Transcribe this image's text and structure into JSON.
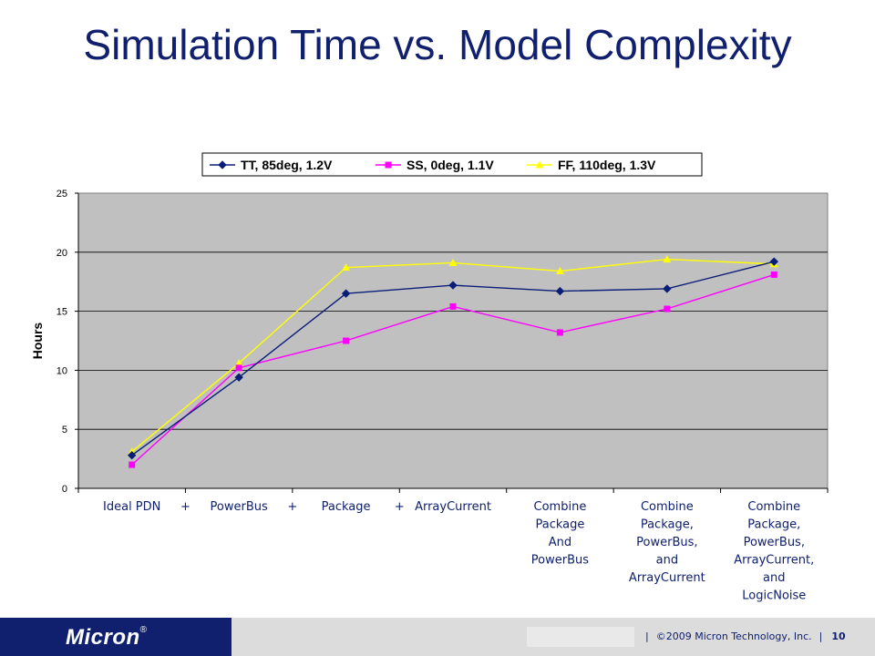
{
  "title": "Simulation Time vs. Model Complexity",
  "footer": {
    "logo": "Micron",
    "copyright": "©2009 Micron Technology, Inc.",
    "page": "10",
    "separator": "|"
  },
  "colors": {
    "title": "#10206e",
    "plot_bg": "#c0c0c0",
    "footer_brand": "#10206e"
  },
  "chart_data": {
    "type": "line",
    "title": "",
    "xlabel": "",
    "ylabel": "Hours",
    "ylim": [
      0,
      25
    ],
    "yticks": [
      0,
      5,
      10,
      15,
      20,
      25
    ],
    "grid": true,
    "legend_position": "top",
    "categories": [
      [
        "Ideal PDN"
      ],
      [
        "PowerBus"
      ],
      [
        "Package"
      ],
      [
        "ArrayCurrent"
      ],
      [
        "Combine",
        "Package",
        "And",
        "PowerBus"
      ],
      [
        "Combine",
        "Package,",
        "PowerBus,",
        "and",
        "ArrayCurrent"
      ],
      [
        "Combine",
        "Package,",
        "PowerBus,",
        "ArrayCurrent,",
        "and",
        "LogicNoise"
      ]
    ],
    "plus_markers": [
      "+",
      "+",
      "+"
    ],
    "series": [
      {
        "name": "TT, 85deg, 1.2V",
        "color": "#0a1e78",
        "marker": "diamond",
        "values": [
          2.8,
          9.4,
          16.5,
          17.2,
          16.7,
          16.9,
          19.2
        ]
      },
      {
        "name": "SS, 0deg, 1.1V",
        "color": "#ff00ff",
        "marker": "square",
        "values": [
          2.0,
          10.2,
          12.5,
          15.4,
          13.2,
          15.2,
          18.1
        ]
      },
      {
        "name": "FF, 110deg, 1.3V",
        "color": "#ffff00",
        "marker": "triangle",
        "values": [
          3.1,
          10.6,
          18.7,
          19.1,
          18.4,
          19.4,
          19.0
        ]
      }
    ]
  }
}
